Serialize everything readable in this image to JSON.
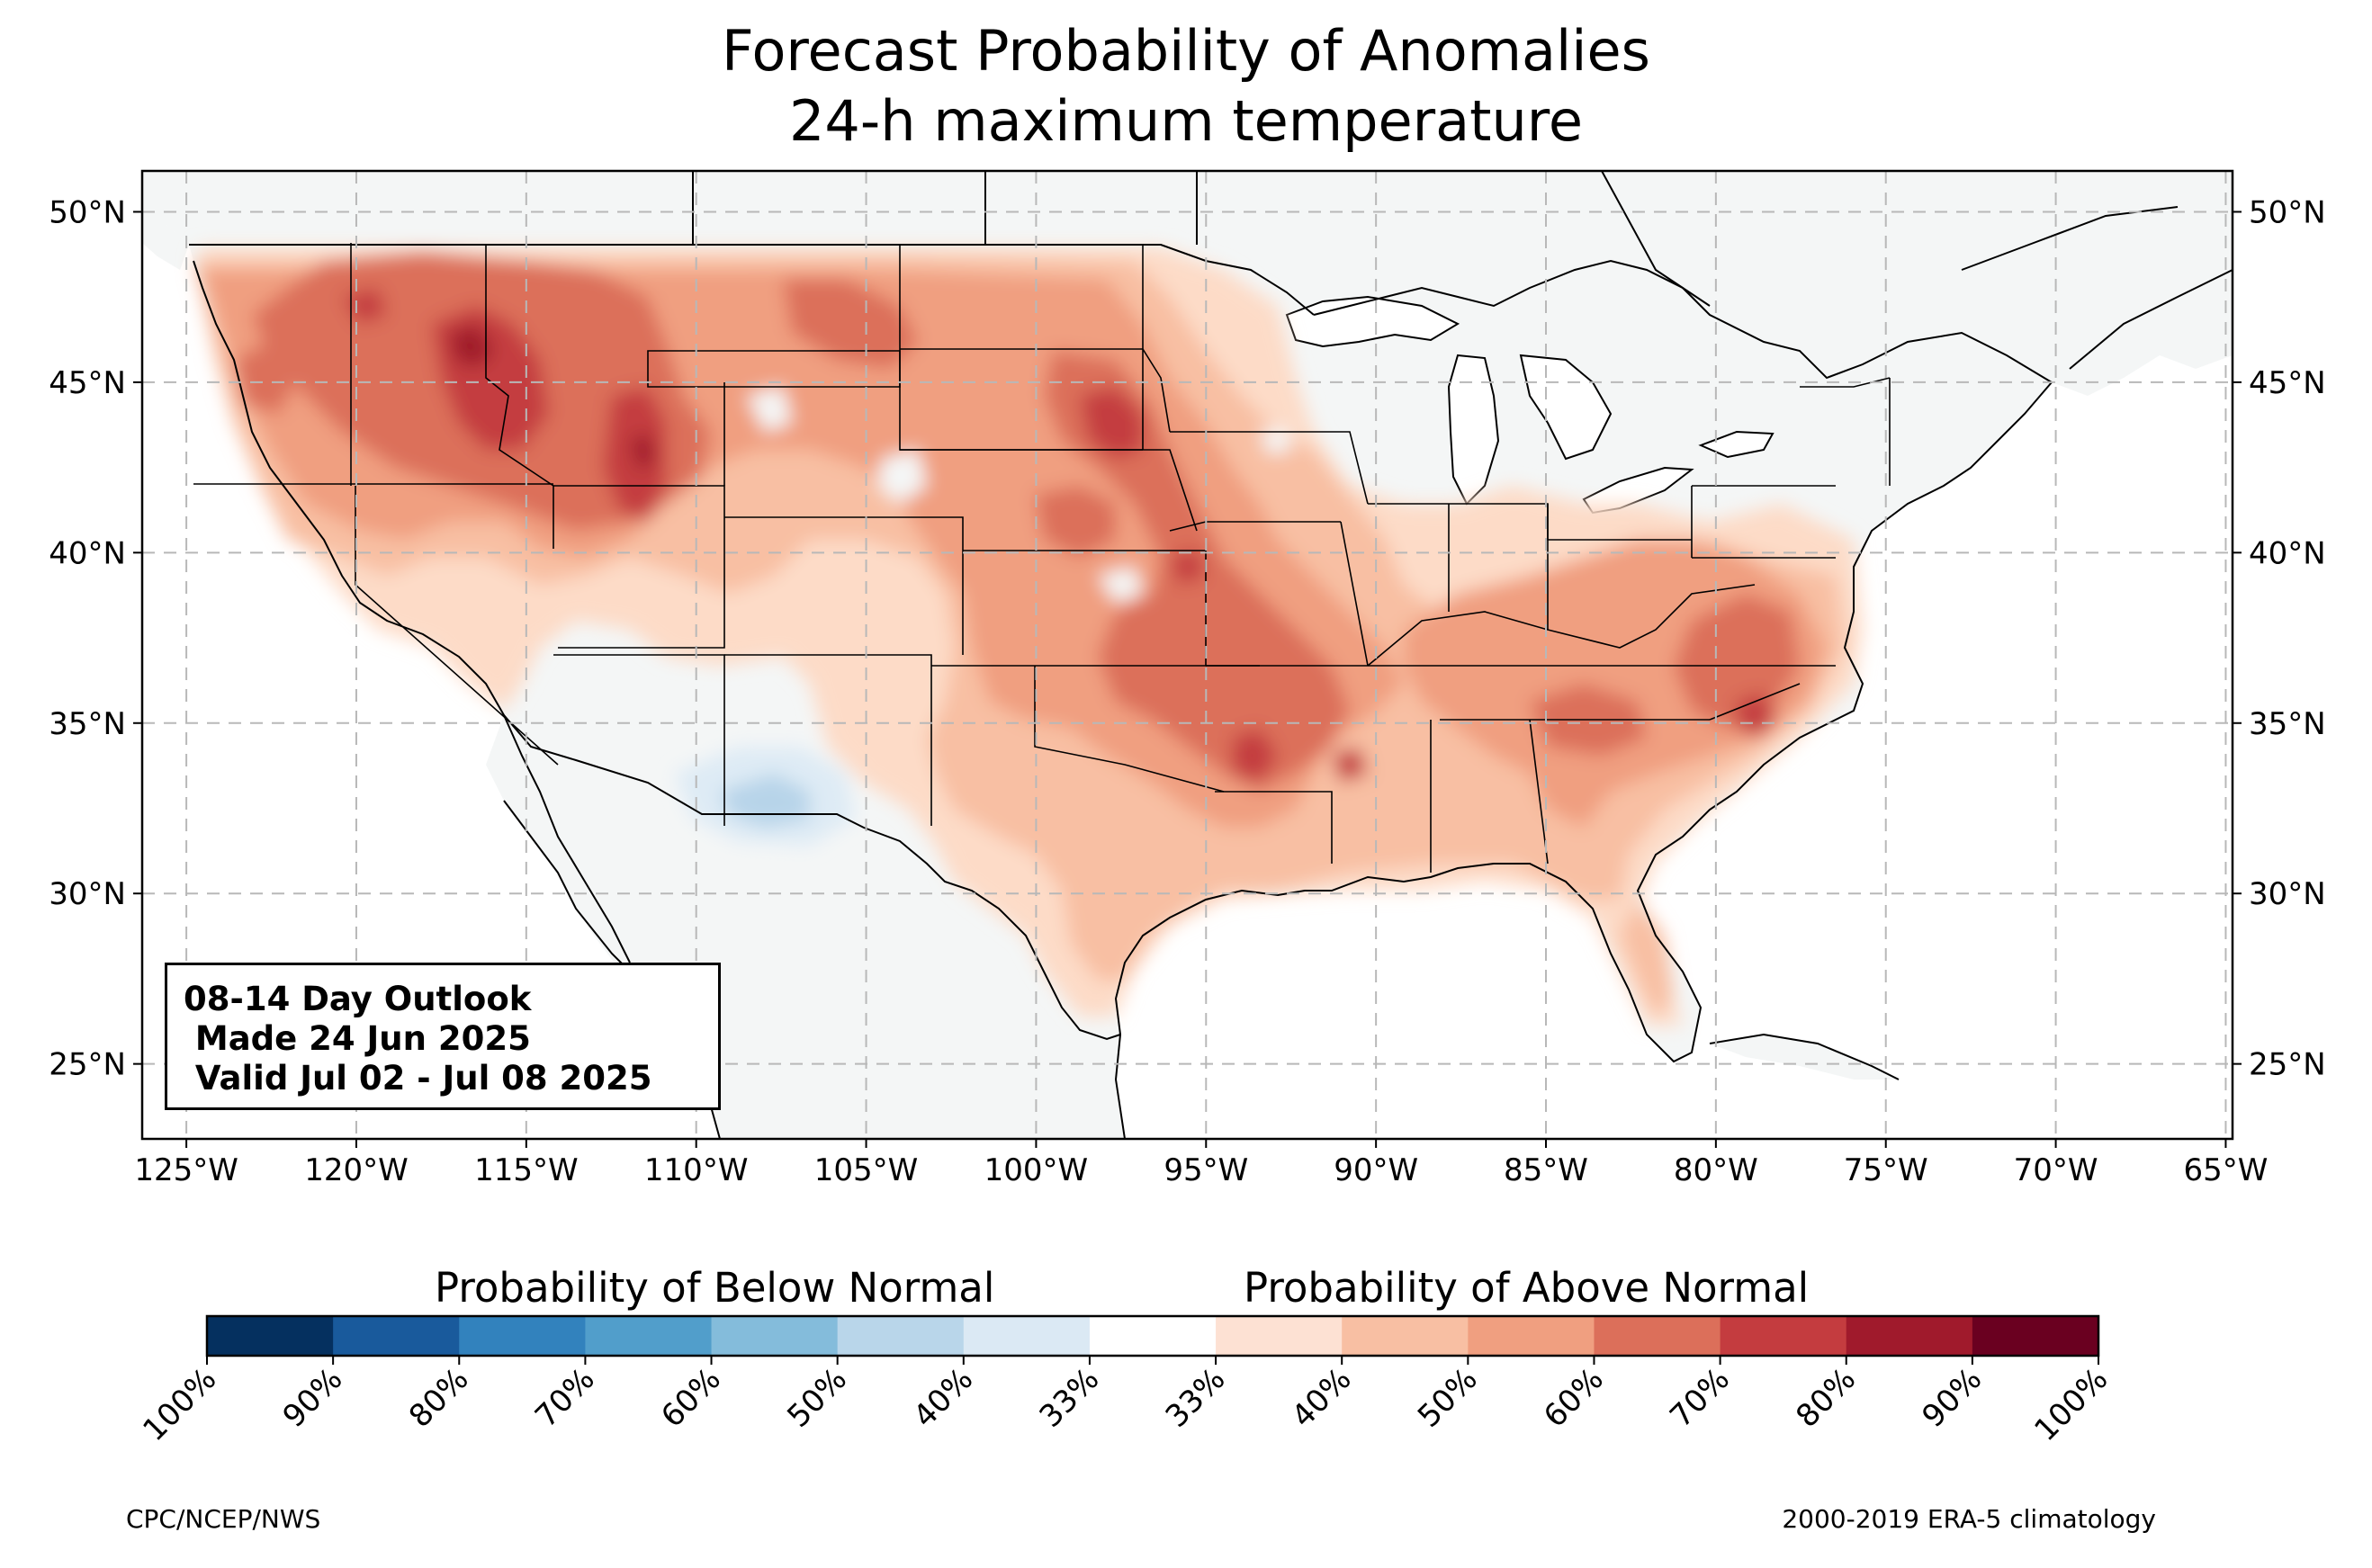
{
  "title": {
    "line1": "Forecast Probability of Anomalies",
    "line2": "24-h maximum temperature"
  },
  "map": {
    "extent_lon": [
      -126.3,
      -64.8
    ],
    "extent_lat": [
      22.8,
      51.2
    ],
    "lon_ticks": [
      {
        "value": -125,
        "label": "125°W"
      },
      {
        "value": -120,
        "label": "120°W"
      },
      {
        "value": -115,
        "label": "115°W"
      },
      {
        "value": -110,
        "label": "110°W"
      },
      {
        "value": -105,
        "label": "105°W"
      },
      {
        "value": -100,
        "label": "100°W"
      },
      {
        "value": -95,
        "label": "95°W"
      },
      {
        "value": -90,
        "label": "90°W"
      },
      {
        "value": -85,
        "label": "85°W"
      },
      {
        "value": -80,
        "label": "80°W"
      },
      {
        "value": -75,
        "label": "75°W"
      },
      {
        "value": -70,
        "label": "70°W"
      },
      {
        "value": -65,
        "label": "65°W"
      }
    ],
    "lat_ticks": [
      {
        "value": 25,
        "label": "25°N"
      },
      {
        "value": 30,
        "label": "30°N"
      },
      {
        "value": 35,
        "label": "35°N"
      },
      {
        "value": 40,
        "label": "40°N"
      },
      {
        "value": 45,
        "label": "45°N"
      },
      {
        "value": 50,
        "label": "50°N"
      }
    ],
    "grid": true,
    "colors": {
      "land": "#f4f6f6",
      "ocean": "#ffffff",
      "above_33_40": "#fddbc7",
      "above_40_50": "#f8bfa3",
      "above_50_60": "#f09f80",
      "above_60_70": "#dc6f5a",
      "above_70_80": "#c43c3f",
      "above_80_90": "#a01a2c",
      "below_33_40": "#deebf5",
      "below_40_50": "#b7d4e9"
    }
  },
  "outlook_box": {
    "line1": "08-14 Day Outlook",
    "line2": " Made 24 Jun 2025",
    "line3": " Valid Jul 02 - Jul 08 2025"
  },
  "colorbar": {
    "below_label": "Probability of Below Normal",
    "above_label": "Probability of Above Normal",
    "colors": [
      "#08306b",
      "#08519c",
      "#2171b5",
      "#4292c6",
      "#6baed6",
      "#9ecae1",
      "#c6dbef",
      "#deebf7",
      "#ffffff",
      "#fde0d2",
      "#fcbba1",
      "#fc9272",
      "#ef6548",
      "#d7301f",
      "#b30000",
      "#7f0000"
    ],
    "segment_colors": [
      "#05305f",
      "#195a9c",
      "#3282bd",
      "#519ecb",
      "#84bcdb",
      "#b9d6ea",
      "#dbe9f4",
      "#ffffff",
      "#fde1d3",
      "#f8bfa3",
      "#f09f80",
      "#dc6f5a",
      "#c43c3f",
      "#a01a2c",
      "#6a0020"
    ],
    "tick_labels": [
      "100%",
      "90%",
      "80%",
      "70%",
      "60%",
      "50%",
      "40%",
      "33%",
      "33%",
      "40%",
      "50%",
      "60%",
      "70%",
      "80%",
      "90%",
      "100%"
    ]
  },
  "footer": {
    "left": "CPC/NCEP/NWS",
    "right": "2000-2019 ERA-5 climatology"
  }
}
